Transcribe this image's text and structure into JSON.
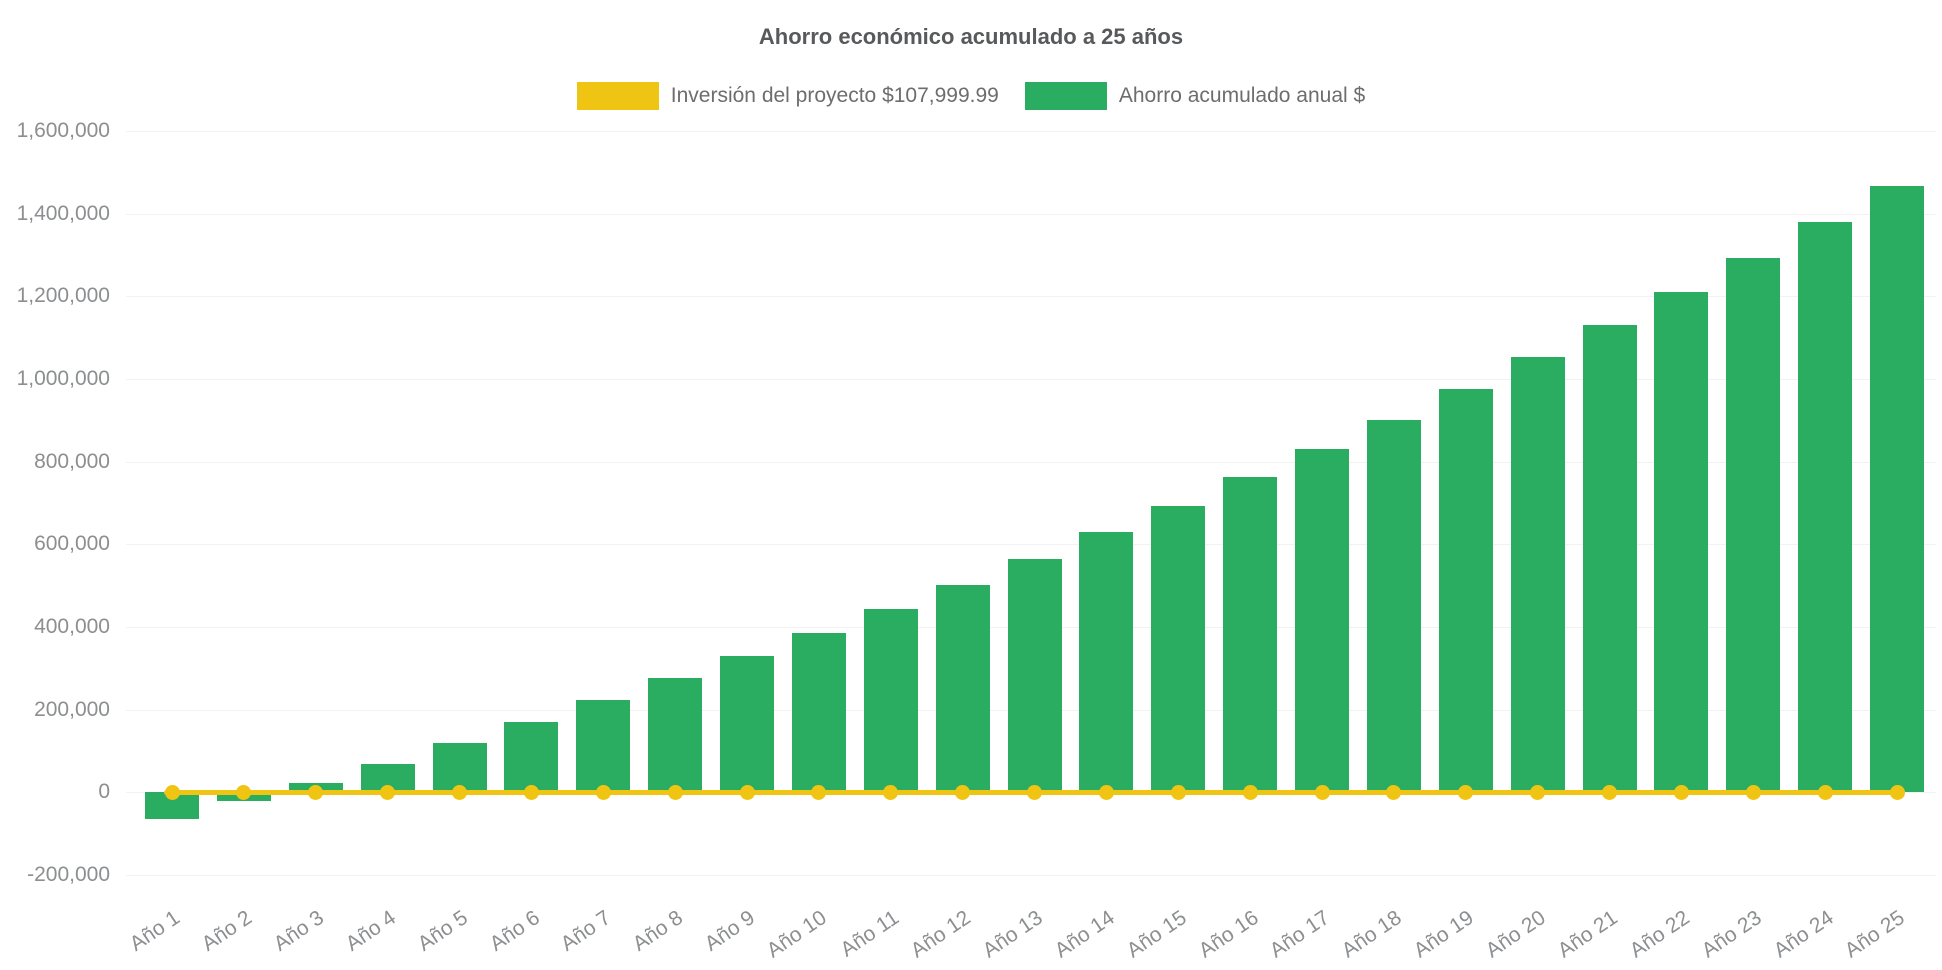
{
  "chart": {
    "title": "Ahorro económico acumulado a 25 años"
  },
  "colors": {
    "bar_green": "#2BAD61",
    "line_yellow": "#F0C413",
    "title_text": "#58595B",
    "legend_text": "#6B6D6F",
    "axis_text": "#8C8E90"
  },
  "chart_data": {
    "type": "bar",
    "title": "Ahorro económico acumulado a 25 años",
    "categories": [
      "Año 1",
      "Año 2",
      "Año 3",
      "Año 4",
      "Año 5",
      "Año 6",
      "Año 7",
      "Año 8",
      "Año 9",
      "Año 10",
      "Año 11",
      "Año 12",
      "Año 13",
      "Año 14",
      "Año 15",
      "Año 16",
      "Año 17",
      "Año 18",
      "Año 19",
      "Año 20",
      "Año 21",
      "Año 22",
      "Año 23",
      "Año 24",
      "Año 25"
    ],
    "series": [
      {
        "name": "Inversión del proyecto $107,999.99",
        "type": "line",
        "color": "#F0C413",
        "investment_amount": 107999.99,
        "values": [
          0,
          0,
          0,
          0,
          0,
          0,
          0,
          0,
          0,
          0,
          0,
          0,
          0,
          0,
          0,
          0,
          0,
          0,
          0,
          0,
          0,
          0,
          0,
          0,
          0
        ]
      },
      {
        "name": "Ahorro acumulado anual $",
        "type": "bar",
        "color": "#2BAD61",
        "values": [
          -64000,
          -22000,
          23000,
          69000,
          120000,
          170000,
          223000,
          277000,
          331000,
          386000,
          444000,
          501000,
          565000,
          629000,
          694000,
          762000,
          831000,
          901000,
          977000,
          1053000,
          1131000,
          1211000,
          1294000,
          1380000,
          1468000
        ]
      }
    ],
    "xlabel": "",
    "ylabel": "",
    "ylim": [
      -200000,
      1600000
    ],
    "y_ticks": [
      {
        "value": 1600000,
        "label": "1,600,000"
      },
      {
        "value": 1400000,
        "label": "1,400,000"
      },
      {
        "value": 1200000,
        "label": "1,200,000"
      },
      {
        "value": 1000000,
        "label": "1,000,000"
      },
      {
        "value": 800000,
        "label": "800,000"
      },
      {
        "value": 600000,
        "label": "600,000"
      },
      {
        "value": 400000,
        "label": "400,000"
      },
      {
        "value": 200000,
        "label": "200,000"
      },
      {
        "value": 0,
        "label": "0"
      },
      {
        "value": -200000,
        "label": "-200,000"
      }
    ],
    "grid": false,
    "legend_position": "top"
  }
}
